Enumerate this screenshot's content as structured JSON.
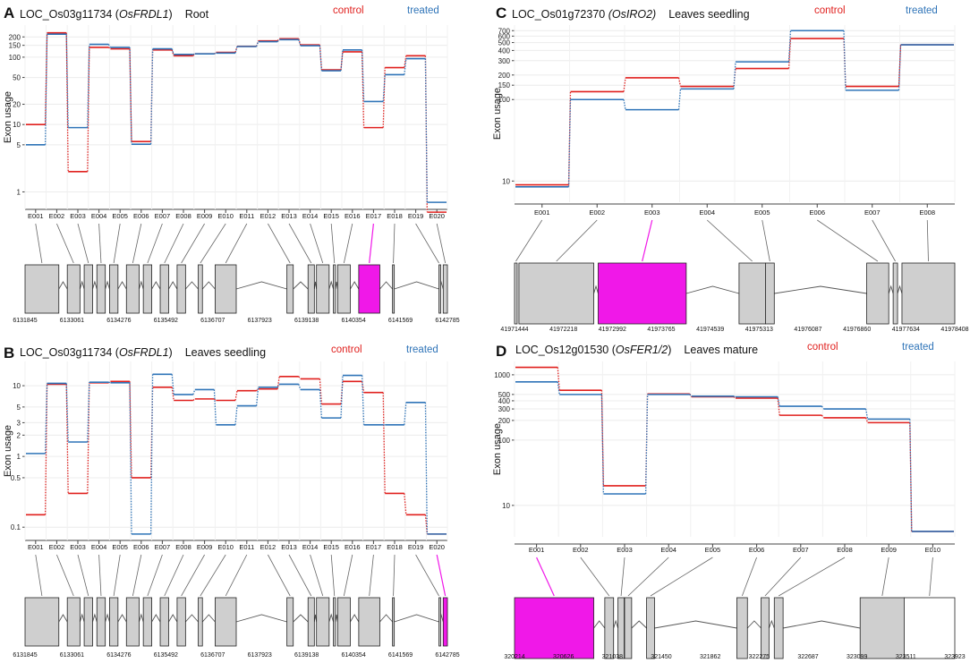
{
  "colors": {
    "control": "#e0201e",
    "treated": "#2f74b8",
    "exon": "#cfcfcf",
    "highlight": "#f018e8",
    "mapline": "#666666",
    "axis": "#555555"
  },
  "legend": {
    "control": "control",
    "treated": "treated"
  },
  "y_axis_label": "Exon usage",
  "panels": [
    {
      "letter": "A",
      "title": {
        "locus": "LOC_Os03g11734 (",
        "gene": "OsFRDL1",
        "close": ")",
        "tissue": "Root"
      },
      "chart_data": {
        "type": "line",
        "yscale": "log",
        "categories": [
          "E001",
          "E002",
          "E003",
          "E004",
          "E005",
          "E006",
          "E007",
          "E008",
          "E009",
          "E010",
          "E011",
          "E012",
          "E013",
          "E014",
          "E015",
          "E016",
          "E017",
          "E018",
          "E019",
          "E020"
        ],
        "yticks": [
          1,
          5,
          10,
          20,
          50,
          100,
          150,
          200
        ],
        "ylim": [
          0.55,
          300
        ],
        "series": [
          {
            "name": "control",
            "values": [
              10,
              230,
              2,
              140,
              133,
              5.6,
              128,
              105,
              112,
              118,
              145,
              175,
              188,
              152,
              65,
              120,
              9,
              70,
              105,
              0.5
            ]
          },
          {
            "name": "treated",
            "values": [
              5,
              220,
              9,
              155,
              140,
              5.1,
              133,
              110,
              112,
              115,
              144,
              170,
              182,
              148,
              63,
              128,
              22,
              55,
              95,
              0.7
            ]
          }
        ]
      },
      "gene_model": {
        "highlight": "E017",
        "ticks": [
          "6131845",
          "6133061",
          "6134276",
          "6135492",
          "6136707",
          "6137923",
          "6139138",
          "6140354",
          "6141569",
          "6142785"
        ]
      }
    },
    {
      "letter": "B",
      "title": {
        "locus": "LOC_Os03g11734 (",
        "gene": "OsFRDL1",
        "close": ")",
        "tissue": "Leaves seedling"
      },
      "chart_data": {
        "type": "line",
        "yscale": "log",
        "categories": [
          "E001",
          "E002",
          "E003",
          "E004",
          "E005",
          "E006",
          "E007",
          "E008",
          "E009",
          "E010",
          "E011",
          "E012",
          "E013",
          "E014",
          "E015",
          "E016",
          "E017",
          "E018",
          "E019",
          "E020"
        ],
        "yticks": [
          0.1,
          0.5,
          1,
          2,
          3,
          5,
          10
        ],
        "ylim": [
          0.065,
          22
        ],
        "series": [
          {
            "name": "control",
            "values": [
              0.15,
              10.5,
              0.3,
              11,
              11.5,
              0.5,
              9.5,
              6.2,
              6.5,
              6.2,
              8.5,
              9,
              13.5,
              12.5,
              5.5,
              11.5,
              8,
              0.3,
              0.15,
              0.08
            ]
          },
          {
            "name": "treated",
            "values": [
              1.1,
              10.8,
              1.6,
              11.2,
              11,
              0.08,
              14.5,
              7.5,
              8.8,
              2.8,
              5.2,
              9.5,
              10.5,
              8.8,
              3.5,
              14,
              2.8,
              2.8,
              5.8,
              0.08
            ]
          }
        ]
      },
      "gene_model": {
        "highlight": "E020",
        "ticks": [
          "6131845",
          "6133061",
          "6134276",
          "6135492",
          "6136707",
          "6137923",
          "6139138",
          "6140354",
          "6141569",
          "6142785"
        ]
      }
    },
    {
      "letter": "C",
      "title": {
        "locus": "LOC_Os01g72370 ",
        "gene": "(OsIRO2)",
        "close": "",
        "tissue": "Leaves seedling"
      },
      "chart_data": {
        "type": "line",
        "yscale": "log",
        "categories": [
          "E001",
          "E002",
          "E003",
          "E004",
          "E005",
          "E006",
          "E007",
          "E008"
        ],
        "yticks": [
          10,
          100,
          150,
          200,
          300,
          400,
          500,
          600,
          700
        ],
        "ylim": [
          5.5,
          820
        ],
        "series": [
          {
            "name": "control",
            "values": [
              9,
              125,
              185,
              145,
              240,
              560,
              145,
              470
            ]
          },
          {
            "name": "treated",
            "values": [
              8.5,
              100,
              75,
              135,
              290,
              700,
              130,
              470
            ]
          }
        ]
      },
      "gene_model": {
        "highlight": "E003",
        "ticks": [
          "41971444",
          "41972218",
          "41972992",
          "41973765",
          "41974539",
          "41975313",
          "41976087",
          "41976860",
          "41977634",
          "41978408"
        ]
      }
    },
    {
      "letter": "D",
      "title": {
        "locus": "LOC_Os12g01530 (",
        "gene": "OsFER1/2",
        "close": ")",
        "tissue": "Leaves mature"
      },
      "chart_data": {
        "type": "line",
        "yscale": "log",
        "categories": [
          "E001",
          "E002",
          "E003",
          "E004",
          "E005",
          "E006",
          "E007",
          "E008",
          "E009",
          "E010"
        ],
        "yticks": [
          10,
          100,
          200,
          300,
          400,
          500,
          1000
        ],
        "ylim": [
          3.3,
          1600
        ],
        "series": [
          {
            "name": "control",
            "values": [
              1300,
              580,
              20,
              510,
              460,
              440,
              240,
              220,
              185,
              4
            ]
          },
          {
            "name": "treated",
            "values": [
              780,
              500,
              15,
              500,
              470,
              460,
              330,
              300,
              210,
              4
            ]
          }
        ]
      },
      "gene_model": {
        "highlight": "E001",
        "ticks": [
          "320214",
          "320626",
          "321038",
          "321450",
          "321862",
          "322275",
          "322687",
          "323099",
          "323511",
          "323923"
        ]
      }
    }
  ]
}
